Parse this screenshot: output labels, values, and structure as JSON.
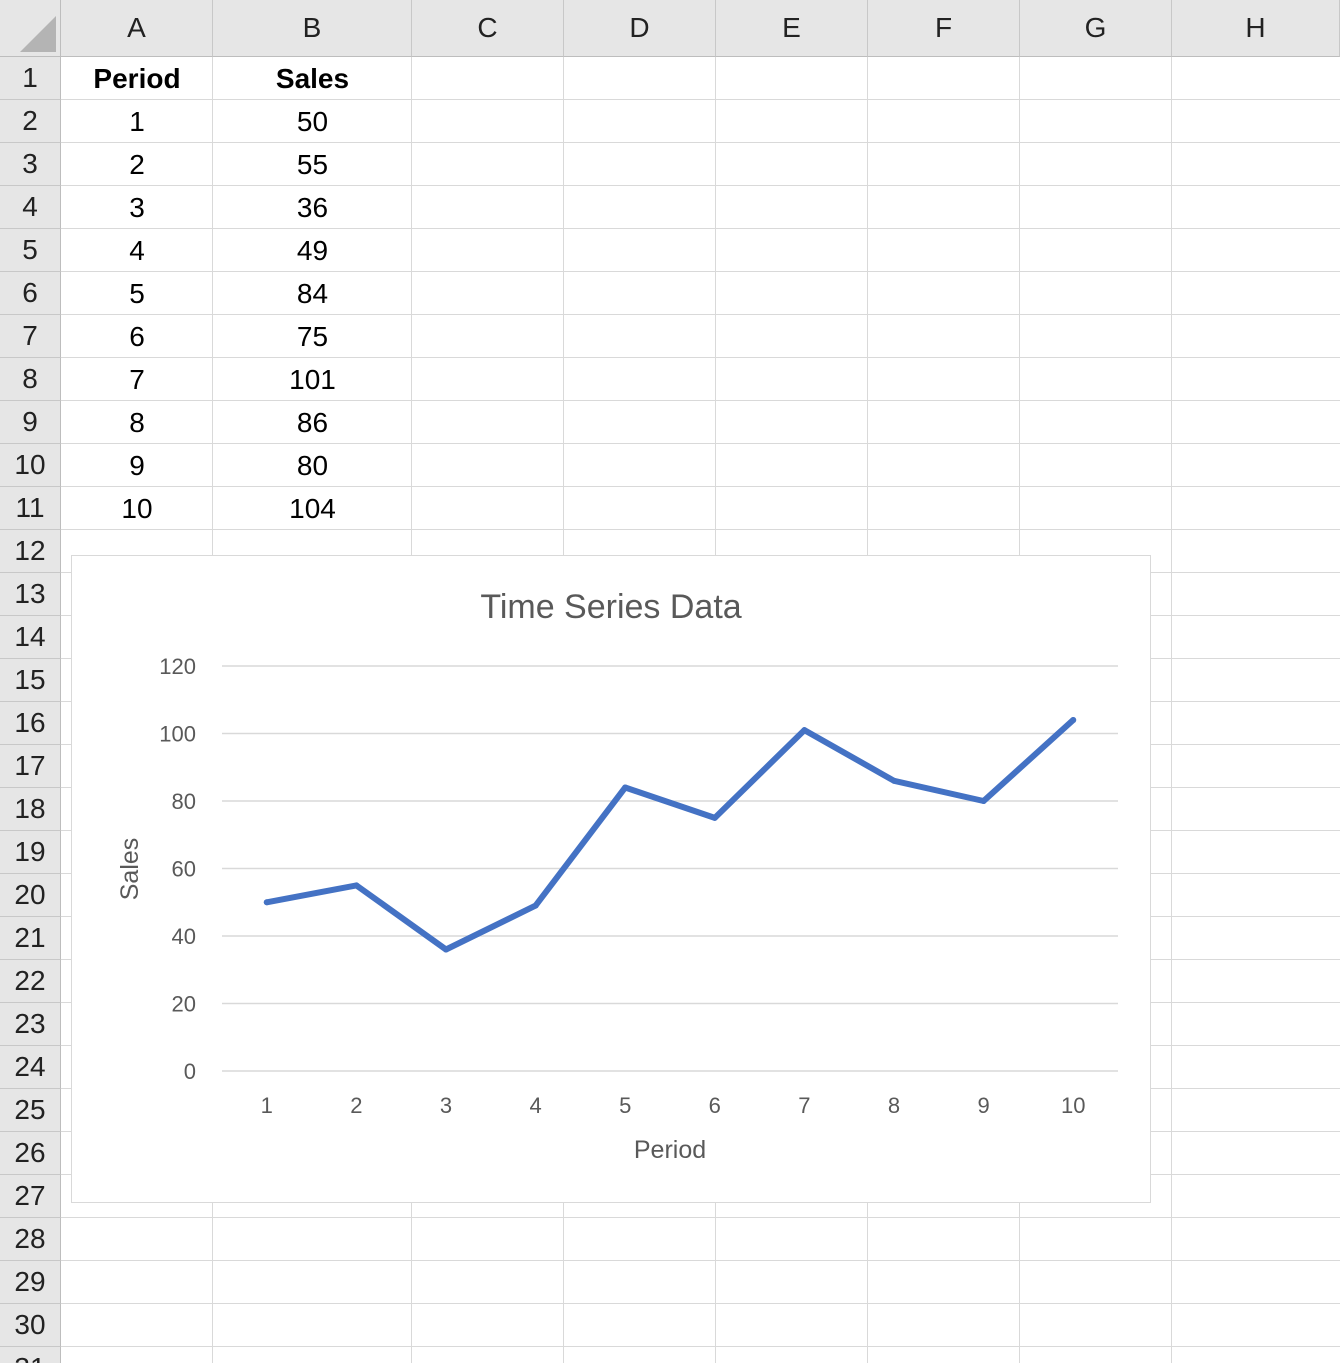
{
  "sheet": {
    "columns": [
      "A",
      "B",
      "C",
      "D",
      "E",
      "F",
      "G",
      "H"
    ],
    "rows": [
      "1",
      "2",
      "3",
      "4",
      "5",
      "6",
      "7",
      "8",
      "9",
      "10",
      "11",
      "12",
      "13",
      "14",
      "15",
      "16",
      "17",
      "18",
      "19",
      "20",
      "21",
      "22",
      "23",
      "24",
      "25",
      "26",
      "27",
      "28",
      "29",
      "30",
      "31"
    ],
    "table": {
      "headers": [
        "Period",
        "Sales"
      ],
      "rows": [
        [
          "1",
          "50"
        ],
        [
          "2",
          "55"
        ],
        [
          "3",
          "36"
        ],
        [
          "4",
          "49"
        ],
        [
          "5",
          "84"
        ],
        [
          "6",
          "75"
        ],
        [
          "7",
          "101"
        ],
        [
          "8",
          "86"
        ],
        [
          "9",
          "80"
        ],
        [
          "10",
          "104"
        ]
      ]
    }
  },
  "chart_data": {
    "type": "line",
    "title": "Time Series Data",
    "xlabel": "Period",
    "ylabel": "Sales",
    "categories": [
      "1",
      "2",
      "3",
      "4",
      "5",
      "6",
      "7",
      "8",
      "9",
      "10"
    ],
    "series": [
      {
        "values": [
          50,
          55,
          36,
          49,
          84,
          75,
          101,
          86,
          80,
          104
        ],
        "color": "#4472c4"
      }
    ],
    "ylim": [
      0,
      120
    ],
    "yticks": [
      "0",
      "20",
      "40",
      "60",
      "80",
      "100",
      "120"
    ],
    "grid": true,
    "legend": "none"
  }
}
